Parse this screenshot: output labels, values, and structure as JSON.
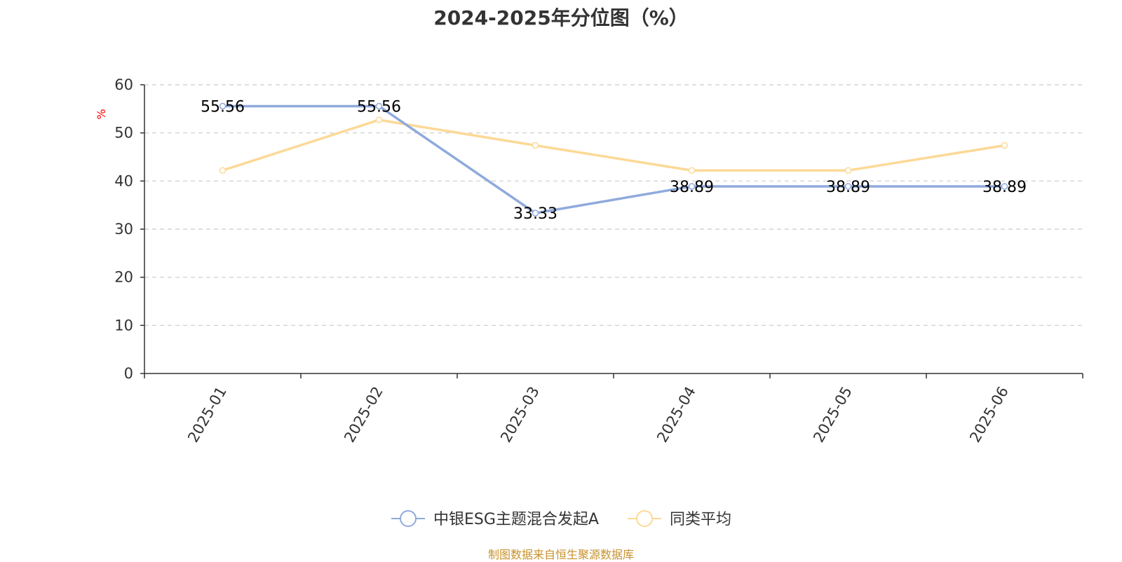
{
  "colors": {
    "series_primary": "#8faadc",
    "series_secondary": "#fcd997",
    "axis": "#333333",
    "grid": "#cccccc",
    "unit_label": "#ff0000",
    "source": "#c7922b"
  },
  "chart_data": {
    "type": "line",
    "title": "2024-2025年分位图（%）",
    "ylabel": "%",
    "xlabel": "",
    "categories": [
      "2025-01",
      "2025-02",
      "2025-03",
      "2025-04",
      "2025-05",
      "2025-06"
    ],
    "yticks": [
      "0",
      "10",
      "20",
      "30",
      "40",
      "50",
      "60"
    ],
    "ylim": [
      0,
      60
    ],
    "grid": true,
    "legend_position": "bottom-center",
    "series": [
      {
        "name": "中银ESG主题混合发起A",
        "values": [
          55.56,
          55.56,
          33.33,
          38.89,
          38.89,
          38.89
        ],
        "labels": [
          "55.56",
          "55.56",
          "33.33",
          "38.89",
          "38.89",
          "38.89"
        ],
        "color": "#8faadc"
      },
      {
        "name": "同类平均",
        "values": [
          42.2,
          52.7,
          47.4,
          42.2,
          42.2,
          47.4
        ],
        "color": "#fcd997"
      }
    ]
  },
  "source_note": "制图数据来自恒生聚源数据库"
}
